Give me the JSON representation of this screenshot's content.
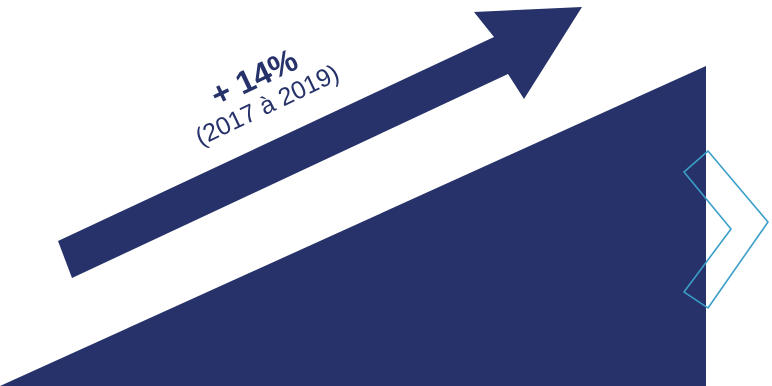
{
  "growth": {
    "value": "+ 14%",
    "period": "(2017 à 2019)"
  },
  "colors": {
    "navy": "#263269",
    "outline_blue": "#3a9fc8",
    "background": "#ffffff"
  },
  "icons": {
    "next": "chevron-right-outline-icon"
  }
}
